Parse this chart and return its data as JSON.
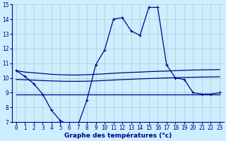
{
  "x_hours": [
    0,
    1,
    2,
    3,
    4,
    5,
    6,
    7,
    8,
    9,
    10,
    11,
    12,
    13,
    14,
    15,
    16,
    17,
    18,
    19,
    20,
    21,
    22,
    23
  ],
  "temp_line": [
    10.5,
    10.1,
    9.6,
    8.9,
    7.8,
    7.1,
    6.8,
    6.8,
    8.5,
    10.9,
    11.9,
    14.0,
    14.1,
    13.2,
    12.9,
    14.8,
    14.8,
    10.9,
    10.0,
    9.9,
    9.0,
    8.9,
    8.9,
    9.0
  ],
  "avg_line_top": [
    10.5,
    10.4,
    10.35,
    10.3,
    10.25,
    10.22,
    10.2,
    10.2,
    10.22,
    10.25,
    10.28,
    10.32,
    10.35,
    10.38,
    10.4,
    10.43,
    10.45,
    10.47,
    10.5,
    10.52,
    10.54,
    10.55,
    10.56,
    10.57
  ],
  "avg_line_mid": [
    9.9,
    9.88,
    9.85,
    9.82,
    9.8,
    9.78,
    9.77,
    9.77,
    9.78,
    9.8,
    9.83,
    9.86,
    9.89,
    9.91,
    9.94,
    9.96,
    9.98,
    10.0,
    10.02,
    10.04,
    10.05,
    10.06,
    10.07,
    10.08
  ],
  "avg_line_bot": [
    8.9,
    8.9,
    8.9,
    8.9,
    8.9,
    8.9,
    8.9,
    8.9,
    8.9,
    8.9,
    8.9,
    8.9,
    8.9,
    8.9,
    8.9,
    8.9,
    8.9,
    8.9,
    8.9,
    8.9,
    8.9,
    8.9,
    8.9,
    8.9
  ],
  "line_color": "#00008b",
  "bg_color": "#cceeff",
  "grid_color": "#aacccc",
  "ylim": [
    7,
    15
  ],
  "yticks": [
    7,
    8,
    9,
    10,
    11,
    12,
    13,
    14,
    15
  ],
  "xticks": [
    0,
    1,
    2,
    3,
    4,
    5,
    6,
    7,
    8,
    9,
    10,
    11,
    12,
    13,
    14,
    15,
    16,
    17,
    18,
    19,
    20,
    21,
    22,
    23
  ],
  "xlabel": "Graphe des températures (°c)",
  "marker": "+"
}
